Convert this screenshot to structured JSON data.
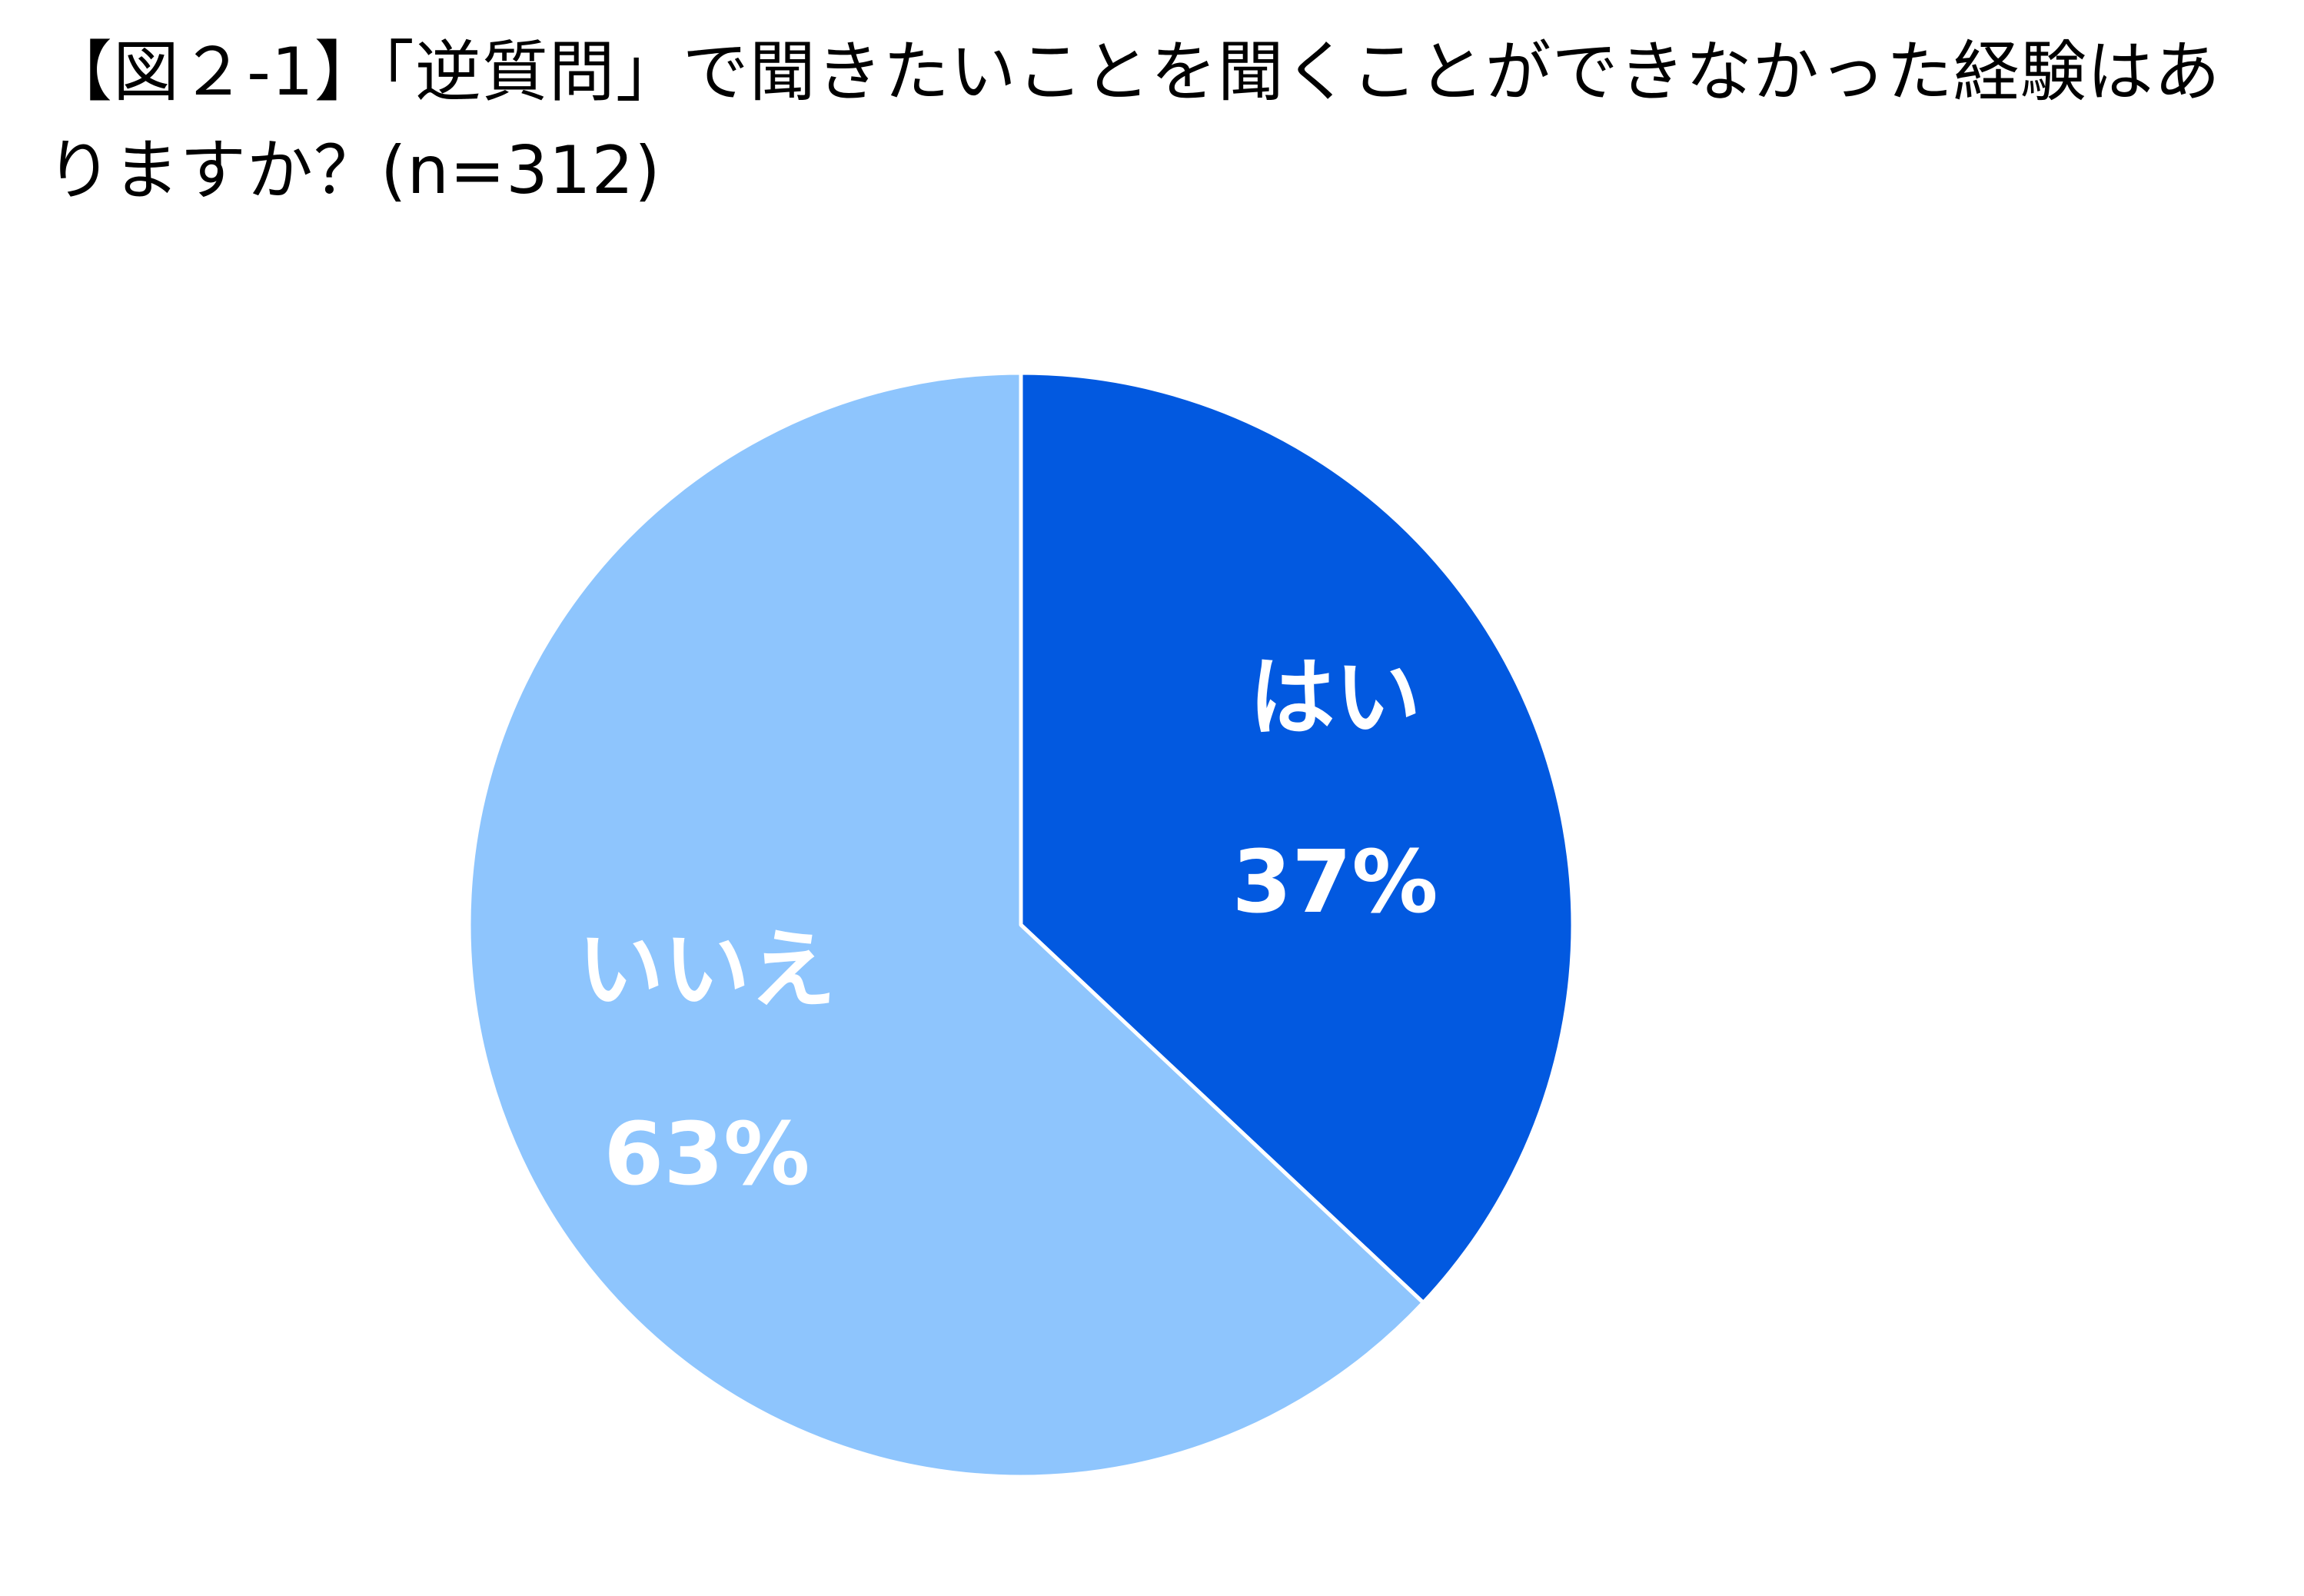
{
  "chart_data": {
    "type": "pie",
    "title": "【図２-1】「逆質問」で聞きたいことを聞くことができなかった経験はありますか？(n=312)",
    "categories": [
      "はい",
      "いいえ"
    ],
    "values": [
      37,
      63
    ],
    "value_labels": [
      "37%",
      "63%"
    ],
    "colors": [
      "#0259E0",
      "#8EC5FD"
    ],
    "legend": "none"
  }
}
